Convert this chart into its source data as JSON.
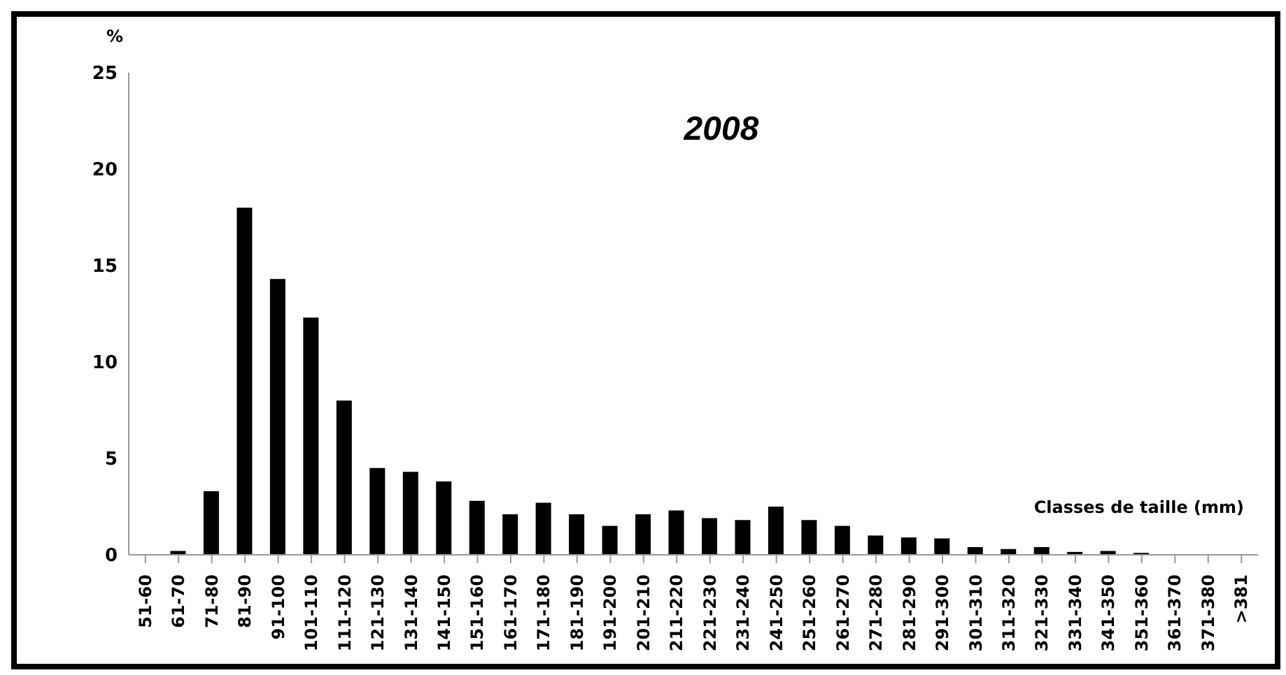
{
  "chart_data": {
    "type": "bar",
    "title": "2008",
    "ylabel": "%",
    "xlabel": "Classes de taille (mm)",
    "categories": [
      "51-60",
      "61-70",
      "71-80",
      "81-90",
      "91-100",
      "101-110",
      "111-120",
      "121-130",
      "131-140",
      "141-150",
      "151-160",
      "161-170",
      "171-180",
      "181-190",
      "191-200",
      "201-210",
      "211-220",
      "221-230",
      "231-240",
      "241-250",
      "251-260",
      "261-270",
      "271-280",
      "281-290",
      "291-300",
      "301-310",
      "311-320",
      "321-330",
      "331-340",
      "341-350",
      "351-360",
      "361-370",
      "371-380",
      ">381"
    ],
    "values": [
      0,
      0.2,
      3.3,
      18,
      14.3,
      12.3,
      8,
      4.5,
      4.3,
      3.8,
      2.8,
      2.1,
      2.7,
      2.1,
      1.5,
      2.1,
      2.3,
      1.9,
      1.8,
      2.5,
      1.8,
      1.5,
      1.0,
      0.9,
      0.85,
      0.4,
      0.3,
      0.4,
      0.15,
      0.2,
      0.1,
      0,
      0,
      0
    ],
    "color": "#000000",
    "ylim": [
      0,
      25
    ],
    "yticks": [
      0,
      5,
      10,
      15,
      20,
      25
    ],
    "grid": false
  }
}
